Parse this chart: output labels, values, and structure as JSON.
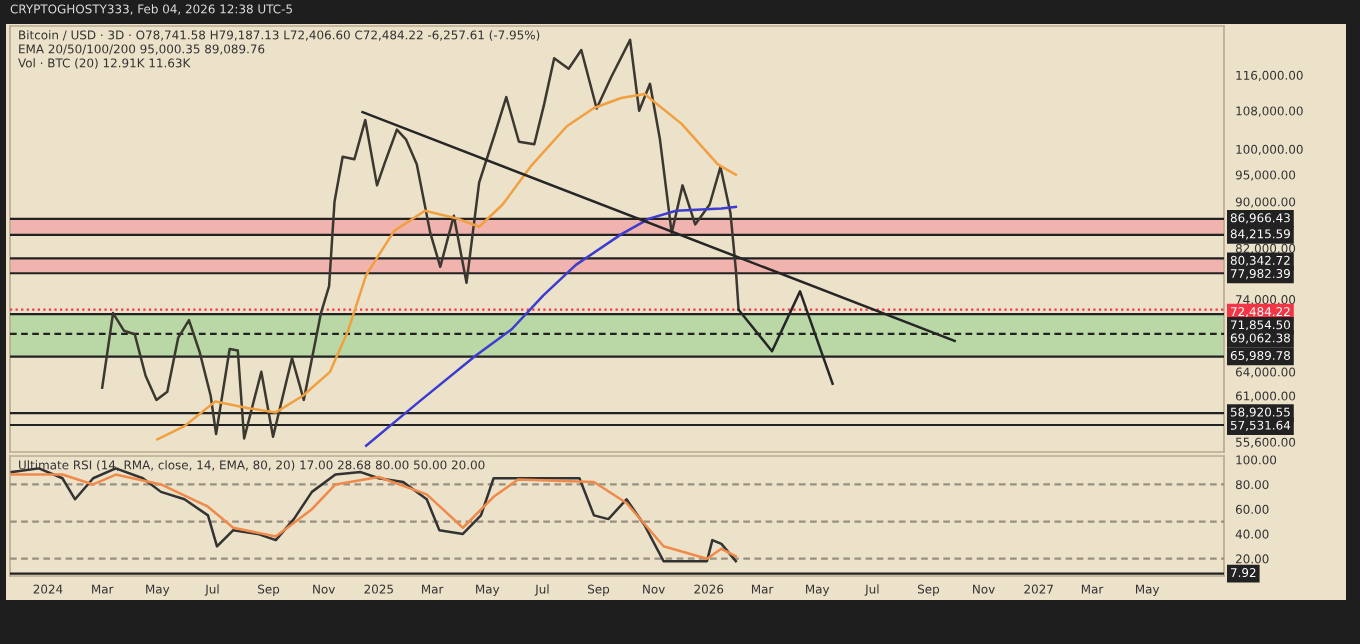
{
  "chart_data": [
    {
      "type": "line",
      "title": "Bitcoin / USD · 3D · O78,741.58 H79,187.13 L72,406.60 C72,484.22 -6,257.61 (-7.95%)",
      "annotations": [
        "CRYPTOGHOSTY333, Feb 04, 2026 12:38 UTC-5",
        "EMA 20/50/100/200 95,000.35 89,089.76",
        "Vol · BTC (20) 12.91K 11.63K"
      ],
      "xlim": [
        "2023-11-20",
        "2027-07-25"
      ],
      "ylim": [
        54500,
        128000
      ],
      "log": true,
      "tick_labels": "y",
      "yticks": [
        {
          "value": 116000,
          "label": "116,000.00"
        },
        {
          "value": 108000,
          "label": "108,000.00"
        },
        {
          "value": 100000,
          "label": "100,000.00"
        },
        {
          "value": 95000,
          "label": "95,000.00"
        },
        {
          "value": 90000,
          "label": "90,000.00"
        },
        {
          "value": 82000,
          "label": "82,000.00"
        },
        {
          "value": 74000,
          "label": "74,000.00"
        },
        {
          "value": 64000,
          "label": "64,000.00"
        },
        {
          "value": 61000,
          "label": "61,000.00"
        },
        {
          "value": 55600,
          "label": "55,600.00"
        }
      ],
      "bands": [
        {
          "axis": "y",
          "from": 65989.78,
          "to": 71854.5,
          "color": "#a8d49a"
        },
        {
          "axis": "y",
          "from": 84215.59,
          "to": 86966.43,
          "color": "#f3a3a3"
        },
        {
          "axis": "y",
          "from": 77982.39,
          "to": 80342.72,
          "color": "#f3a3a3"
        }
      ],
      "ref_lines": [
        {
          "axis": "y",
          "value": 86966.43,
          "label": "86,966.43",
          "color": "#222222"
        },
        {
          "axis": "y",
          "value": 84215.59,
          "label": "84,215.59",
          "color": "#222222"
        },
        {
          "axis": "y",
          "value": 80342.72,
          "label": "80,342.72",
          "color": "#222222"
        },
        {
          "axis": "y",
          "value": 77982.39,
          "label": "77,982.39",
          "color": "#222222"
        },
        {
          "axis": "y",
          "value": 72484.22,
          "label": "72,484.22",
          "color": "#f23645",
          "line_style": "dotted"
        },
        {
          "axis": "y",
          "value": 71854.5,
          "label": "71,854.50",
          "color": "#222222"
        },
        {
          "axis": "y",
          "value": 69062.38,
          "label": "69,062.38",
          "color": "#222222",
          "line_style": "dashed"
        },
        {
          "axis": "y",
          "value": 65989.78,
          "label": "65,989.78",
          "color": "#222222"
        },
        {
          "axis": "y",
          "value": 58920.55,
          "label": "58,920.55",
          "color": "#222222"
        },
        {
          "axis": "y",
          "value": 57531.64,
          "label": "57,531.64",
          "color": "#222222"
        }
      ],
      "series": [
        {
          "color": "#3b3830",
          "x": [
            "2024-03-01",
            "2024-03-13",
            "2024-03-25",
            "2024-04-06",
            "2024-04-18",
            "2024-04-30",
            "2024-05-12",
            "2024-05-24",
            "2024-06-05",
            "2024-06-17",
            "2024-06-29",
            "2024-07-05",
            "2024-07-20",
            "2024-07-29",
            "2024-08-05",
            "2024-08-24",
            "2024-09-06",
            "2024-09-27",
            "2024-10-10",
            "2024-10-29",
            "2024-11-07",
            "2024-11-13",
            "2024-11-22",
            "2024-12-05",
            "2024-12-17",
            "2024-12-30",
            "2025-01-07",
            "2025-01-21",
            "2025-01-31",
            "2025-02-12",
            "2025-02-27",
            "2025-03-10",
            "2025-03-25",
            "2025-04-08",
            "2025-04-22",
            "2025-05-10",
            "2025-05-22",
            "2025-06-05",
            "2025-06-22",
            "2025-07-03",
            "2025-07-14",
            "2025-07-30",
            "2025-08-13",
            "2025-08-30",
            "2025-09-15",
            "2025-10-06",
            "2025-10-16",
            "2025-10-28",
            "2025-11-08",
            "2025-11-21",
            "2025-12-03",
            "2025-12-17",
            "2026-01-02",
            "2026-01-14",
            "2026-01-25",
            "2026-01-31",
            "2026-02-03"
          ],
          "values": [
            62000,
            72000,
            69500,
            69000,
            63500,
            60500,
            61500,
            68500,
            71000,
            66500,
            61000,
            56500,
            67000,
            66800,
            56000,
            64000,
            56200,
            65800,
            60500,
            72000,
            76000,
            90000,
            98500,
            98000,
            106000,
            93000,
            97000,
            104000,
            102000,
            97000,
            84500,
            79000,
            87500,
            76500,
            93500,
            103500,
            111000,
            101500,
            101000,
            109500,
            120000,
            117500,
            122000,
            108500,
            115500,
            124500,
            108000,
            114000,
            102000,
            84500,
            93000,
            86000,
            89500,
            96500,
            88000,
            78500,
            72484.22
          ]
        },
        {
          "color": "#f0a040",
          "x": [
            "2024-05-01",
            "2024-05-31",
            "2024-07-04",
            "2024-08-10",
            "2024-09-09",
            "2024-10-09",
            "2024-11-08",
            "2024-11-28",
            "2024-12-18",
            "2025-01-18",
            "2025-02-21",
            "2025-03-29",
            "2025-04-22",
            "2025-05-18",
            "2025-06-18",
            "2025-07-28",
            "2025-08-27",
            "2025-09-26",
            "2025-10-22",
            "2025-12-02",
            "2026-01-11",
            "2026-01-31"
          ],
          "values": [
            55900,
            57400,
            60300,
            59500,
            59000,
            61000,
            64000,
            69500,
            77700,
            84900,
            88400,
            87000,
            85600,
            89500,
            96600,
            104700,
            108600,
            110800,
            111700,
            105200,
            97000,
            95000
          ]
        },
        {
          "color": "#3c3cd0",
          "x": [
            "2024-12-18",
            "2025-02-17",
            "2025-04-18",
            "2025-05-28",
            "2025-07-02",
            "2025-08-07",
            "2025-09-26",
            "2025-10-27",
            "2025-11-26",
            "2026-01-15",
            "2026-01-31"
          ],
          "values": [
            55200,
            60500,
            66100,
            69700,
            74600,
            79300,
            84300,
            87000,
            88400,
            88800,
            89090
          ]
        },
        {
          "color": "#262626",
          "x": [
            "2024-12-14",
            "2026-09-30"
          ],
          "values": [
            107700,
            68100
          ]
        },
        {
          "color": "#262626",
          "x": [
            "2026-02-03",
            "2026-03-12",
            "2026-04-12",
            "2026-05-18"
          ],
          "values": [
            72484.22,
            66700,
            75200,
            62500
          ]
        }
      ]
    },
    {
      "type": "line",
      "title": "Ultimate RSI (14, RMA, close, 14, EMA, 80, 20) 17.00 28.68 80.00 50.00 20.00",
      "xlim": [
        "2023-11-20",
        "2027-07-25"
      ],
      "ylim": [
        6,
        103
      ],
      "yticks": [
        {
          "value": 100,
          "label": "100.00"
        },
        {
          "value": 80,
          "label": "80.00"
        },
        {
          "value": 60,
          "label": "60.00"
        },
        {
          "value": 40,
          "label": "40.00"
        },
        {
          "value": 20,
          "label": "20.00"
        }
      ],
      "xticks": [
        {
          "value": "2024-01-01",
          "label": "2024"
        },
        {
          "value": "2024-03-01",
          "label": "Mar"
        },
        {
          "value": "2024-05-01",
          "label": "May"
        },
        {
          "value": "2024-07-01",
          "label": "Jul"
        },
        {
          "value": "2024-09-01",
          "label": "Sep"
        },
        {
          "value": "2024-11-01",
          "label": "Nov"
        },
        {
          "value": "2025-01-01",
          "label": "2025"
        },
        {
          "value": "2025-03-01",
          "label": "Mar"
        },
        {
          "value": "2025-05-01",
          "label": "May"
        },
        {
          "value": "2025-07-01",
          "label": "Jul"
        },
        {
          "value": "2025-09-01",
          "label": "Sep"
        },
        {
          "value": "2025-11-01",
          "label": "Nov"
        },
        {
          "value": "2026-01-01",
          "label": "2026"
        },
        {
          "value": "2026-03-01",
          "label": "Mar"
        },
        {
          "value": "2026-05-01",
          "label": "May"
        },
        {
          "value": "2026-07-01",
          "label": "Jul"
        },
        {
          "value": "2026-09-01",
          "label": "Sep"
        },
        {
          "value": "2026-11-01",
          "label": "Nov"
        },
        {
          "value": "2027-01-01",
          "label": "2027"
        },
        {
          "value": "2027-03-01",
          "label": "Mar"
        },
        {
          "value": "2027-05-01",
          "label": "May"
        }
      ],
      "ref_lines": [
        {
          "axis": "y",
          "value": 80,
          "color": "#999080",
          "line_style": "dashed"
        },
        {
          "axis": "y",
          "value": 50,
          "color": "#999080",
          "line_style": "dashed"
        },
        {
          "axis": "y",
          "value": 20,
          "color": "#999080",
          "line_style": "dashed"
        },
        {
          "axis": "y",
          "value": 7.92,
          "label": "7.92",
          "color": "#222222"
        }
      ],
      "series": [
        {
          "color": "#333333",
          "x": [
            "2023-11-22",
            "2023-12-22",
            "2024-01-17",
            "2024-01-31",
            "2024-02-20",
            "2024-03-16",
            "2024-04-15",
            "2024-05-05",
            "2024-05-31",
            "2024-06-26",
            "2024-07-06",
            "2024-07-24",
            "2024-08-20",
            "2024-09-09",
            "2024-09-29",
            "2024-10-19",
            "2024-11-14",
            "2024-12-12",
            "2025-01-01",
            "2025-01-28",
            "2025-02-23",
            "2025-03-09",
            "2025-04-04",
            "2025-04-24",
            "2025-05-08",
            "2025-06-04",
            "2025-07-08",
            "2025-08-11",
            "2025-08-27",
            "2025-09-12",
            "2025-10-02",
            "2025-10-22",
            "2025-11-12",
            "2025-12-02",
            "2025-12-30",
            "2026-01-05",
            "2026-01-15",
            "2026-01-31"
          ],
          "values": [
            90,
            93,
            85,
            68,
            85,
            93,
            85,
            74,
            68,
            55,
            30,
            43,
            40,
            35,
            52,
            74,
            88,
            90,
            85,
            82,
            68,
            43,
            40,
            55,
            85,
            85,
            85,
            85,
            55,
            52,
            68,
            47,
            18,
            18,
            18,
            35,
            32,
            18
          ]
        },
        {
          "color": "#f08a4b",
          "x": [
            "2023-11-22",
            "2024-01-17",
            "2024-02-20",
            "2024-03-16",
            "2024-05-05",
            "2024-06-26",
            "2024-07-24",
            "2024-09-09",
            "2024-10-19",
            "2024-11-14",
            "2025-01-01",
            "2025-02-23",
            "2025-04-04",
            "2025-05-08",
            "2025-06-04",
            "2025-08-27",
            "2025-10-02",
            "2025-11-12",
            "2025-12-30",
            "2026-01-15",
            "2026-01-31"
          ],
          "values": [
            88,
            88,
            80,
            88,
            80,
            62,
            45,
            38,
            60,
            80,
            86,
            72,
            45,
            70,
            84,
            82,
            65,
            30,
            20,
            28,
            22
          ]
        }
      ]
    }
  ]
}
